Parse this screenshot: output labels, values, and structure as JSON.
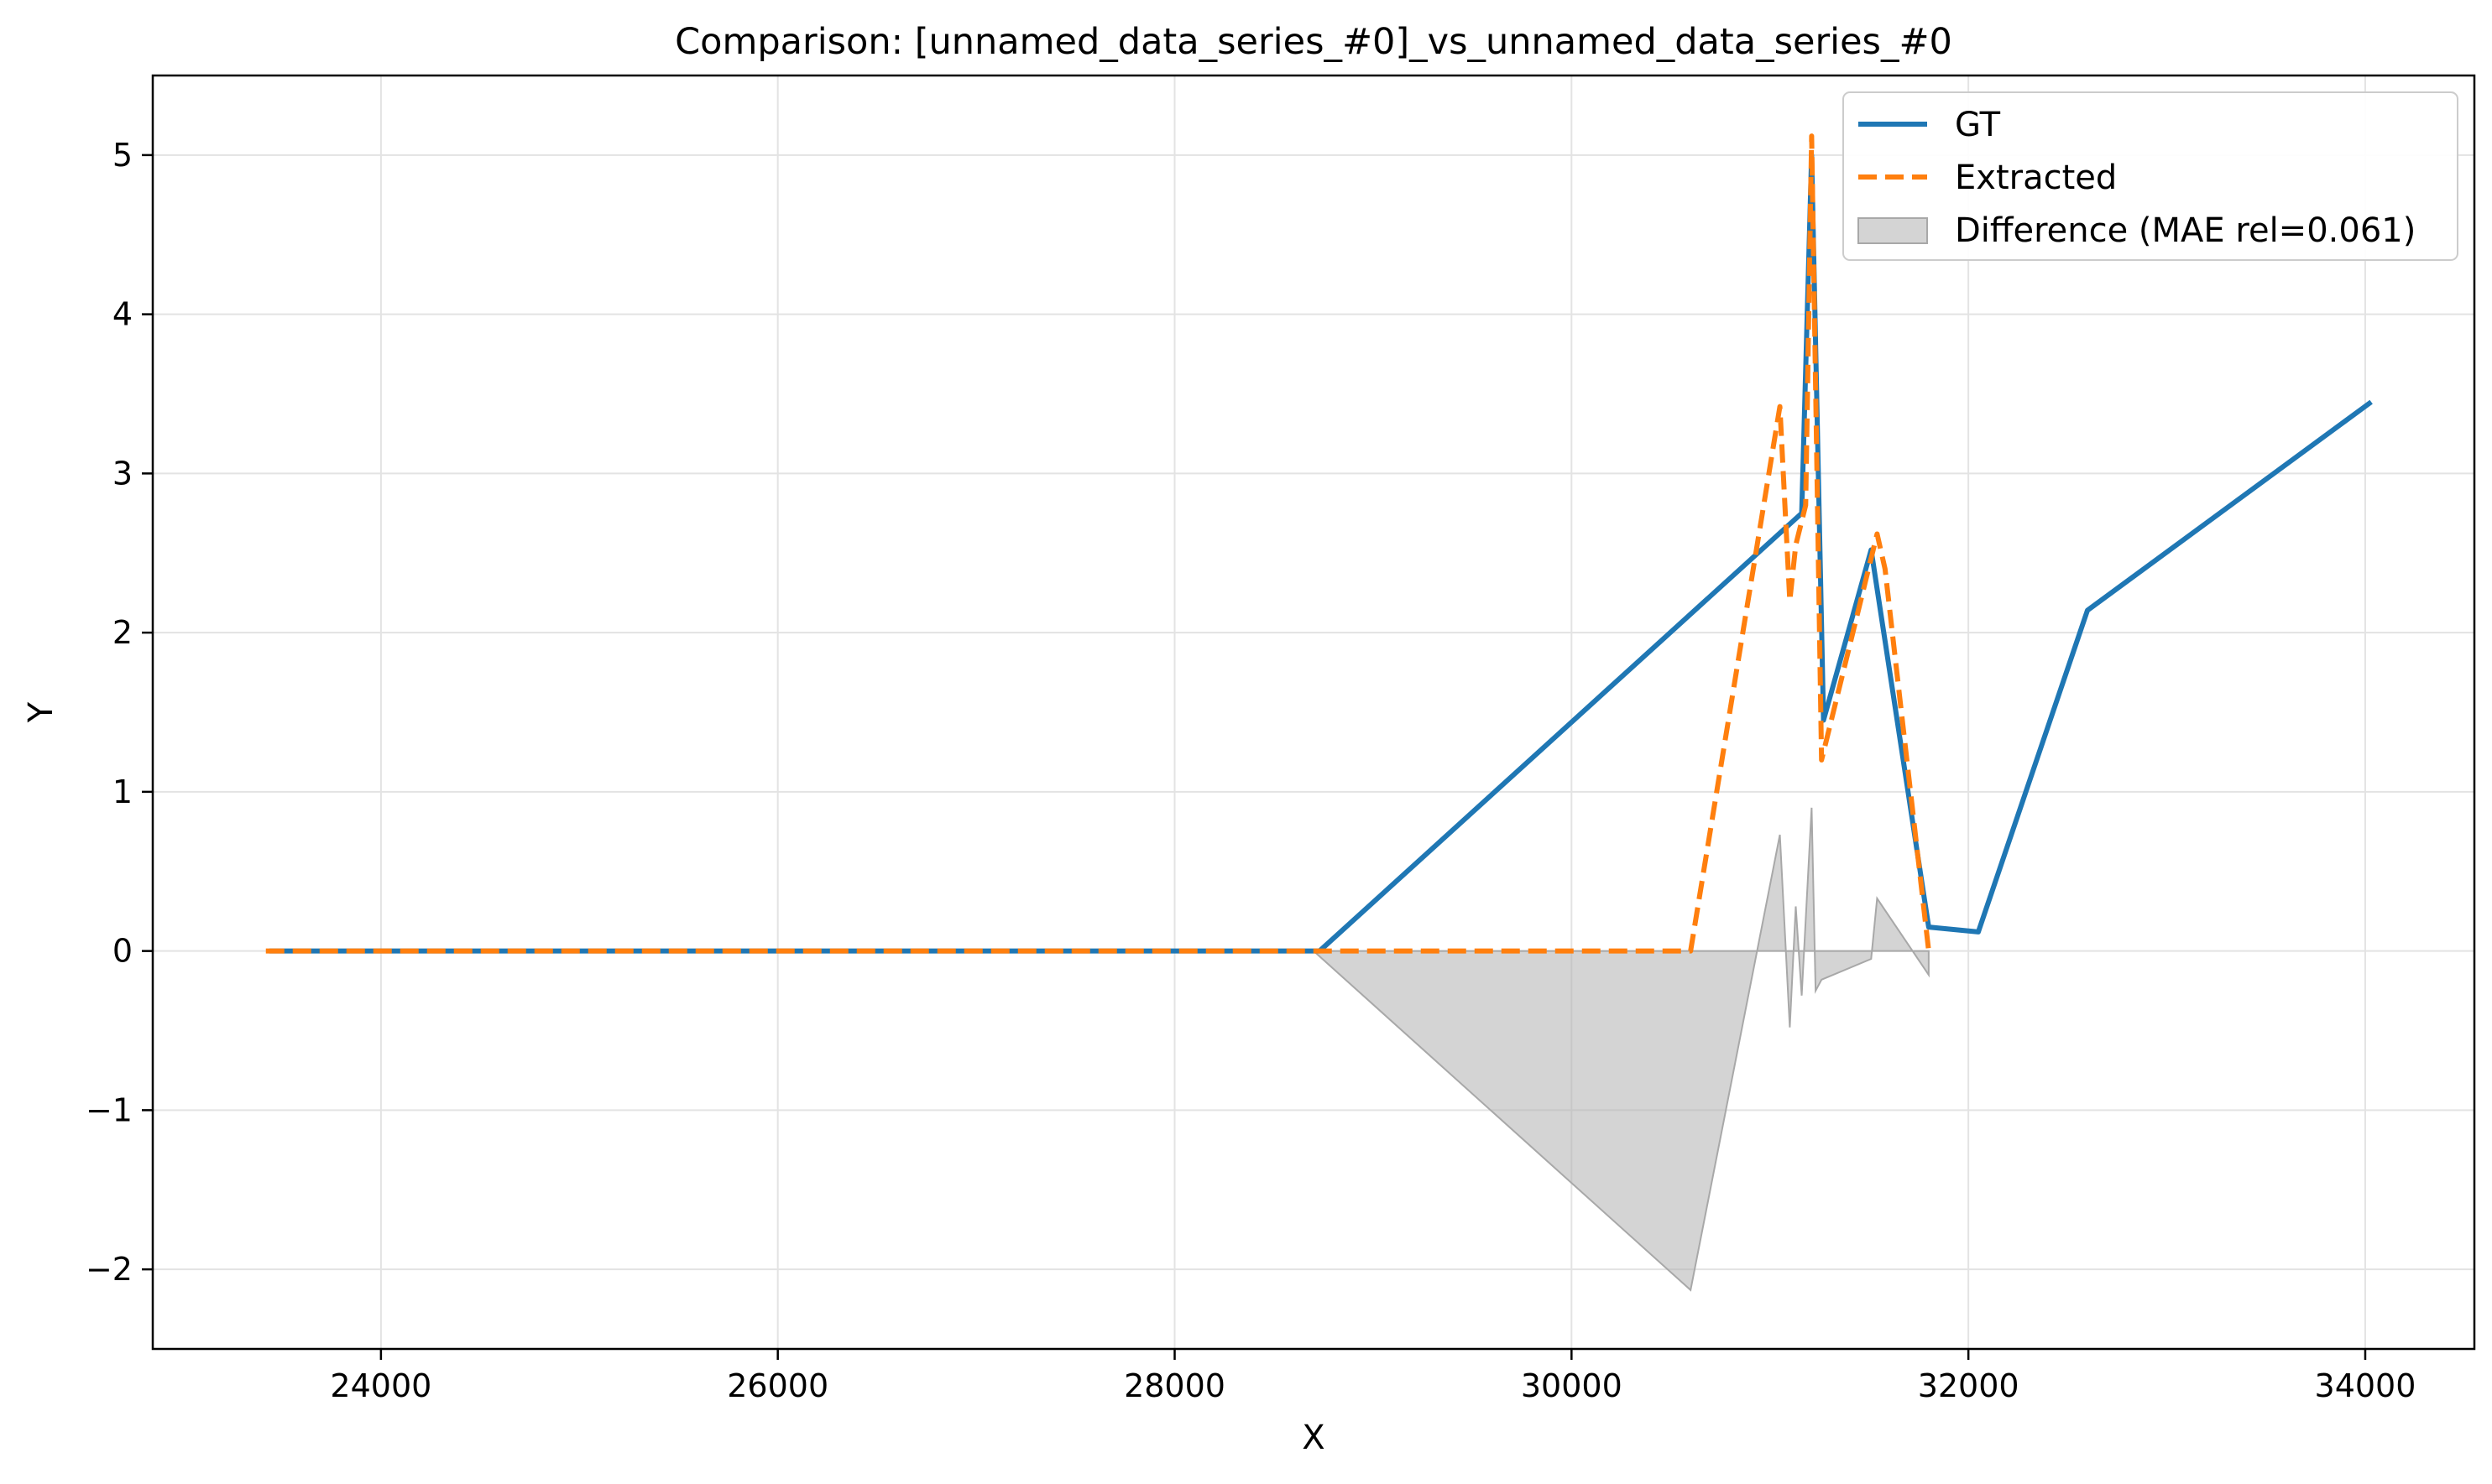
{
  "chart_data": {
    "type": "line",
    "title": "Comparison: [unnamed_data_series_#0]_vs_unnamed_data_series_#0",
    "xlabel": "X",
    "ylabel": "Y",
    "xlim": [
      22850,
      34550
    ],
    "ylim": [
      -2.5,
      5.5
    ],
    "x_ticks": [
      24000,
      26000,
      28000,
      30000,
      32000,
      34000
    ],
    "x_tick_labels": [
      "24000",
      "26000",
      "28000",
      "30000",
      "32000",
      "34000"
    ],
    "y_ticks": [
      -2,
      -1,
      0,
      1,
      2,
      3,
      4,
      5
    ],
    "y_tick_labels": [
      "−2",
      "−1",
      "0",
      "1",
      "2",
      "3",
      "4",
      "5"
    ],
    "grid": true,
    "legend_position": "top-right",
    "series": [
      {
        "name": "GT",
        "style": "solid",
        "color": "#1f77b4",
        "x": [
          23450,
          28730,
          31160,
          31210,
          31270,
          31510,
          31800,
          32050,
          32600,
          34020
        ],
        "y": [
          0.0,
          0.0,
          2.75,
          5.0,
          1.45,
          2.52,
          0.15,
          0.12,
          2.14,
          3.44
        ]
      },
      {
        "name": "Extracted",
        "style": "dashed",
        "color": "#ff7f0e",
        "x": [
          23420,
          28700,
          30600,
          31050,
          31100,
          31130,
          31180,
          31210,
          31260,
          31540,
          31580,
          31800
        ],
        "y": [
          0.0,
          0.0,
          0.0,
          3.42,
          2.2,
          2.55,
          2.8,
          5.12,
          1.2,
          2.62,
          2.4,
          0.0
        ]
      }
    ],
    "difference": {
      "name": "Difference (MAE rel=0.061)",
      "color": "#b0b0b0",
      "x": [
        28700,
        30600,
        31050,
        31100,
        31130,
        31160,
        31210,
        31230,
        31260,
        31510,
        31540,
        31800
      ],
      "y": [
        0.0,
        -2.13,
        0.73,
        -0.48,
        0.28,
        -0.28,
        0.9,
        -0.25,
        -0.18,
        -0.05,
        0.33,
        -0.15
      ]
    }
  }
}
